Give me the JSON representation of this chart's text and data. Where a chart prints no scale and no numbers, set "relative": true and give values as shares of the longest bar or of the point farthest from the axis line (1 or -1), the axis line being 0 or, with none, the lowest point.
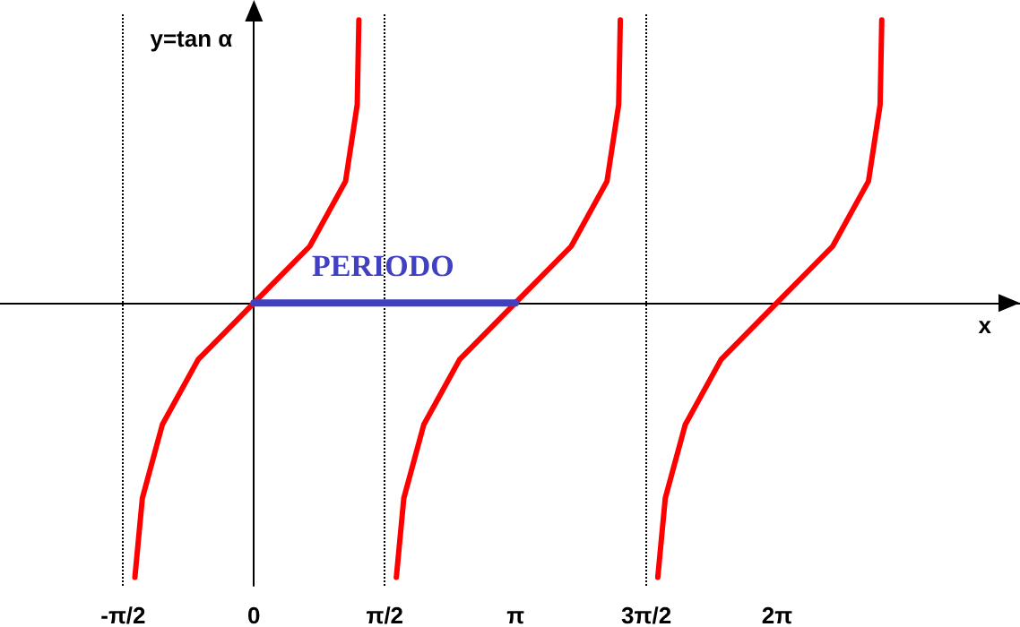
{
  "chart_data": {
    "type": "line",
    "relative": true,
    "ylabel": "y=tan α",
    "xlabel": "x",
    "xlim": [
      -3.05,
      9.2
    ],
    "xticks": [
      {
        "value": -1.5708,
        "label": "-π/2"
      },
      {
        "value": 0,
        "label": "0"
      },
      {
        "value": 1.5708,
        "label": "π/2"
      },
      {
        "value": 3.1416,
        "label": "π"
      },
      {
        "value": 4.7124,
        "label": "3π/2"
      },
      {
        "value": 6.2832,
        "label": "2π"
      }
    ],
    "series": [
      {
        "color": "#ff0000",
        "x": [
          -1.43,
          -1.34,
          -1.1,
          -0.67,
          0,
          0.67,
          1.1,
          1.24,
          1.26
        ],
        "values": [
          -0.97,
          -0.69,
          -0.43,
          -0.2,
          0,
          0.2,
          0.43,
          0.7,
          1.0
        ]
      },
      {
        "color": "#ff0000",
        "x": [
          1.71,
          1.8,
          2.04,
          2.47,
          3.14,
          3.81,
          4.24,
          4.38,
          4.4
        ],
        "values": [
          -0.97,
          -0.69,
          -0.43,
          -0.2,
          0,
          0.2,
          0.43,
          0.7,
          1.0
        ]
      },
      {
        "color": "#ff0000",
        "x": [
          4.85,
          4.94,
          5.18,
          5.61,
          6.28,
          6.95,
          7.38,
          7.52,
          7.54
        ],
        "values": [
          -0.97,
          -0.69,
          -0.43,
          -0.2,
          0,
          0.2,
          0.43,
          0.7,
          1.0
        ]
      },
      {
        "color": "#4040c0",
        "x": [
          0,
          3.14
        ],
        "values": [
          0,
          0
        ]
      }
    ],
    "ref_lines": [
      {
        "axis": "x",
        "value": -1.5708,
        "color": "#000000",
        "line_style": "dotted"
      },
      {
        "axis": "x",
        "value": 1.5708,
        "color": "#000000",
        "line_style": "dotted"
      },
      {
        "axis": "x",
        "value": 4.7124,
        "color": "#000000",
        "line_style": "dotted"
      }
    ],
    "annotations": [
      {
        "text": "PERIODO",
        "x": 1.55,
        "y": 0.13
      }
    ],
    "grid": false,
    "marker": "none",
    "line_style": "solid"
  }
}
